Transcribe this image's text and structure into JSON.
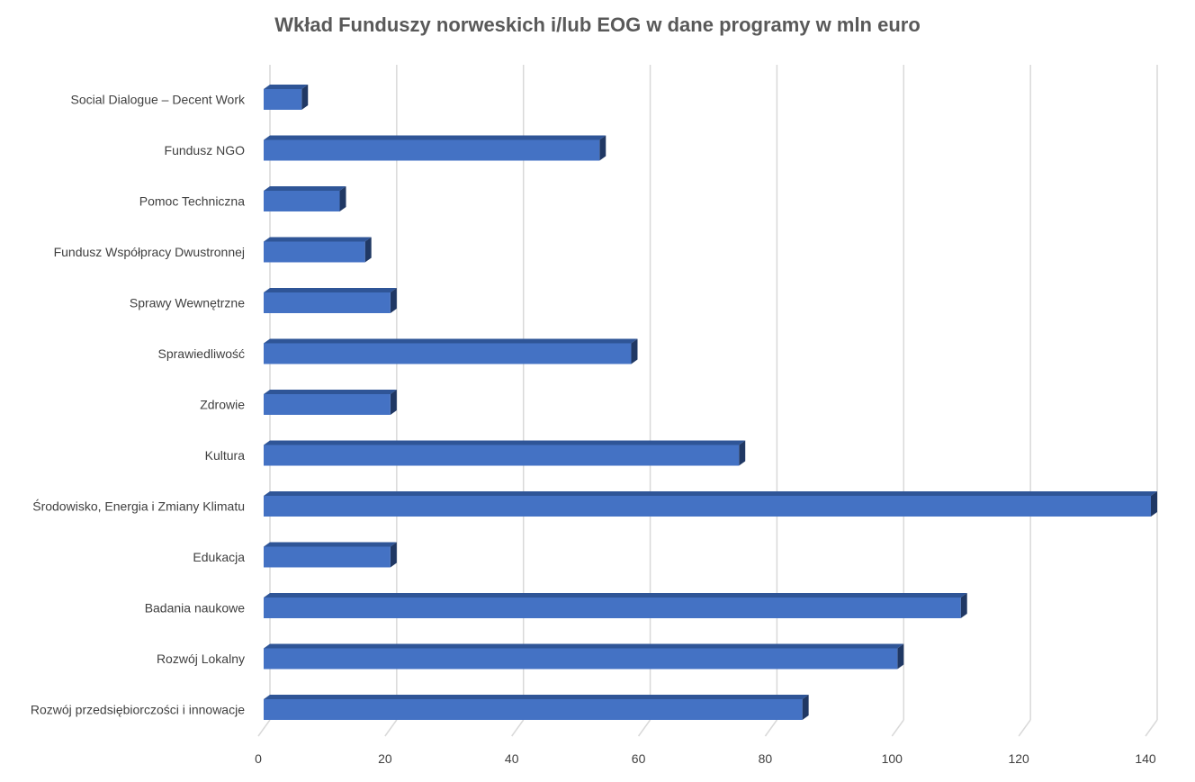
{
  "chart_data": {
    "type": "bar",
    "orientation": "horizontal",
    "style": "3d",
    "title": "Wkład Funduszy norweskich i/lub EOG w dane programy w mln euro",
    "xlabel": "",
    "ylabel": "",
    "categories": [
      "Social Dialogue – Decent Work",
      "Fundusz NGO",
      "Pomoc Techniczna",
      "Fundusz Współpracy Dwustronnej",
      "Sprawy Wewnętrzne",
      "Sprawiedliwość",
      "Zdrowie",
      "Kultura",
      "Środowisko, Energia i Zmiany Klimatu",
      "Edukacja",
      "Badania naukowe",
      "Rozwój Lokalny",
      "Rozwój przedsiębiorczości i innowacje"
    ],
    "values": [
      6,
      53,
      12,
      16,
      20,
      58,
      20,
      75,
      140,
      20,
      110,
      100,
      85
    ],
    "xlim": [
      0,
      140
    ],
    "ticks": [
      0,
      20,
      40,
      60,
      80,
      100,
      120,
      140
    ],
    "grid": true,
    "legend": "none",
    "colors": {
      "bar_front": "#4472c4",
      "bar_top": "#2f5597",
      "bar_side": "#203864",
      "grid": "#d9d9d9",
      "text": "#404040",
      "title": "#595959"
    }
  }
}
